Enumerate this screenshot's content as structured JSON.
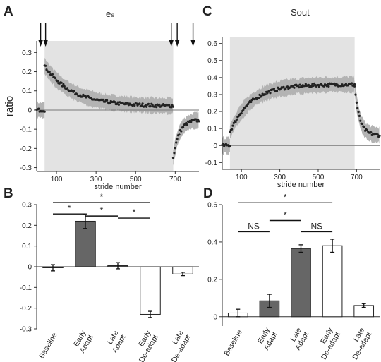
{
  "panels": [
    {
      "letter": "A",
      "title": "eₛ"
    },
    {
      "letter": "C",
      "title": "Sout"
    },
    {
      "letter": "B"
    },
    {
      "letter": "D"
    }
  ],
  "chart_data": [
    {
      "id": "A",
      "type": "scatter",
      "title": "eₛ",
      "xlabel": "stride number",
      "ylabel": "ratio",
      "xlim": [
        0,
        820
      ],
      "ylim": [
        -0.32,
        0.36
      ],
      "xticks": [
        100,
        300,
        500,
        700
      ],
      "yticks": [
        -0.3,
        -0.2,
        -0.1,
        0,
        0.1,
        0.2,
        0.3
      ],
      "ytick_labels": [
        "-0.3",
        "-0.2",
        "-0.1",
        "0",
        "0.1",
        "0.2",
        "0.3"
      ],
      "adaptation_shading": [
        40,
        690
      ],
      "arrows_at_stride": [
        20,
        45,
        680,
        710,
        790
      ],
      "phases": [
        {
          "name": "baseline",
          "x": [
            0,
            40
          ],
          "start": 0.0,
          "end": 0.0,
          "tau": 10
        },
        {
          "name": "adaptation",
          "x": [
            40,
            690
          ],
          "start": 0.23,
          "end": 0.02,
          "tau": 140
        },
        {
          "name": "de-adaptation",
          "x": [
            690,
            820
          ],
          "start": -0.25,
          "end": -0.05,
          "tau": 30
        }
      ]
    },
    {
      "id": "C",
      "type": "scatter",
      "title": "Sout",
      "xlabel": "stride number",
      "ylabel": "",
      "xlim": [
        0,
        820
      ],
      "ylim": [
        -0.14,
        0.64
      ],
      "xticks": [
        100,
        300,
        500,
        700
      ],
      "yticks": [
        -0.1,
        0,
        0.1,
        0.2,
        0.3,
        0.4,
        0.5,
        0.6
      ],
      "ytick_labels": [
        "-0.1",
        "0",
        "0.1",
        "0.2",
        "0.3",
        "0.4",
        "0.5",
        "0.6"
      ],
      "adaptation_shading": [
        40,
        690
      ],
      "phases": [
        {
          "name": "baseline",
          "x": [
            0,
            40
          ],
          "start": 0.0,
          "end": 0.0,
          "tau": 10
        },
        {
          "name": "adaptation",
          "x": [
            40,
            690
          ],
          "start": 0.08,
          "end": 0.36,
          "tau": 110
        },
        {
          "name": "de-adaptation",
          "x": [
            690,
            820
          ],
          "start": 0.35,
          "end": 0.06,
          "tau": 25
        }
      ]
    },
    {
      "id": "B",
      "type": "bar",
      "categories": [
        "Baseline",
        "Early\nAdapt",
        "Late\nAdapt",
        "Early\nDe-adapt",
        "Late\nDe-adapt"
      ],
      "values": [
        -0.005,
        0.22,
        0.005,
        -0.23,
        -0.035
      ],
      "errors": [
        0.015,
        0.035,
        0.015,
        0.015,
        0.008
      ],
      "fills": [
        "#ffffff",
        "#666666",
        "#666666",
        "#ffffff",
        "#ffffff"
      ],
      "ylim": [
        -0.3,
        0.3
      ],
      "yticks": [
        -0.3,
        -0.2,
        -0.1,
        0,
        0.1,
        0.2,
        0.3
      ],
      "ytick_labels": [
        "-0.3",
        "-0.2",
        "-0.1",
        "0",
        "0.1",
        "0.2",
        "0.3"
      ],
      "significance": [
        {
          "from": 0,
          "to": 3,
          "y": 0.31,
          "label": "*"
        },
        {
          "from": 0,
          "to": 1,
          "y": 0.255,
          "label": "*"
        },
        {
          "from": 1,
          "to": 2,
          "y": 0.245,
          "label": "*"
        },
        {
          "from": 2,
          "to": 3,
          "y": 0.235,
          "label": "*"
        }
      ]
    },
    {
      "id": "D",
      "type": "bar",
      "categories": [
        "Baseline",
        "Early\nAdapt",
        "Late\nAdapt",
        "Early\nDe-adapt",
        "Late\nDe-adapt"
      ],
      "values": [
        0.02,
        0.085,
        0.365,
        0.38,
        0.06
      ],
      "errors": [
        0.02,
        0.035,
        0.02,
        0.035,
        0.01
      ],
      "fills": [
        "#ffffff",
        "#666666",
        "#666666",
        "#ffffff",
        "#ffffff"
      ],
      "ylim": [
        -0.05,
        0.6
      ],
      "yticks": [
        0,
        0.2,
        0.4,
        0.6
      ],
      "ytick_labels": [
        "0",
        "0.2",
        "0.4",
        "0.6"
      ],
      "significance": [
        {
          "from": 0,
          "to": 3,
          "y": 0.61,
          "label": "*"
        },
        {
          "from": 0,
          "to": 1,
          "y": 0.455,
          "label": "NS"
        },
        {
          "from": 1,
          "to": 2,
          "y": 0.515,
          "label": "*"
        },
        {
          "from": 2,
          "to": 3,
          "y": 0.455,
          "label": "NS"
        }
      ]
    }
  ],
  "colors": {
    "shading": "#e3e3e3",
    "band": "#b3b3b3",
    "dot": "#222222",
    "bar_dark": "#666666"
  }
}
